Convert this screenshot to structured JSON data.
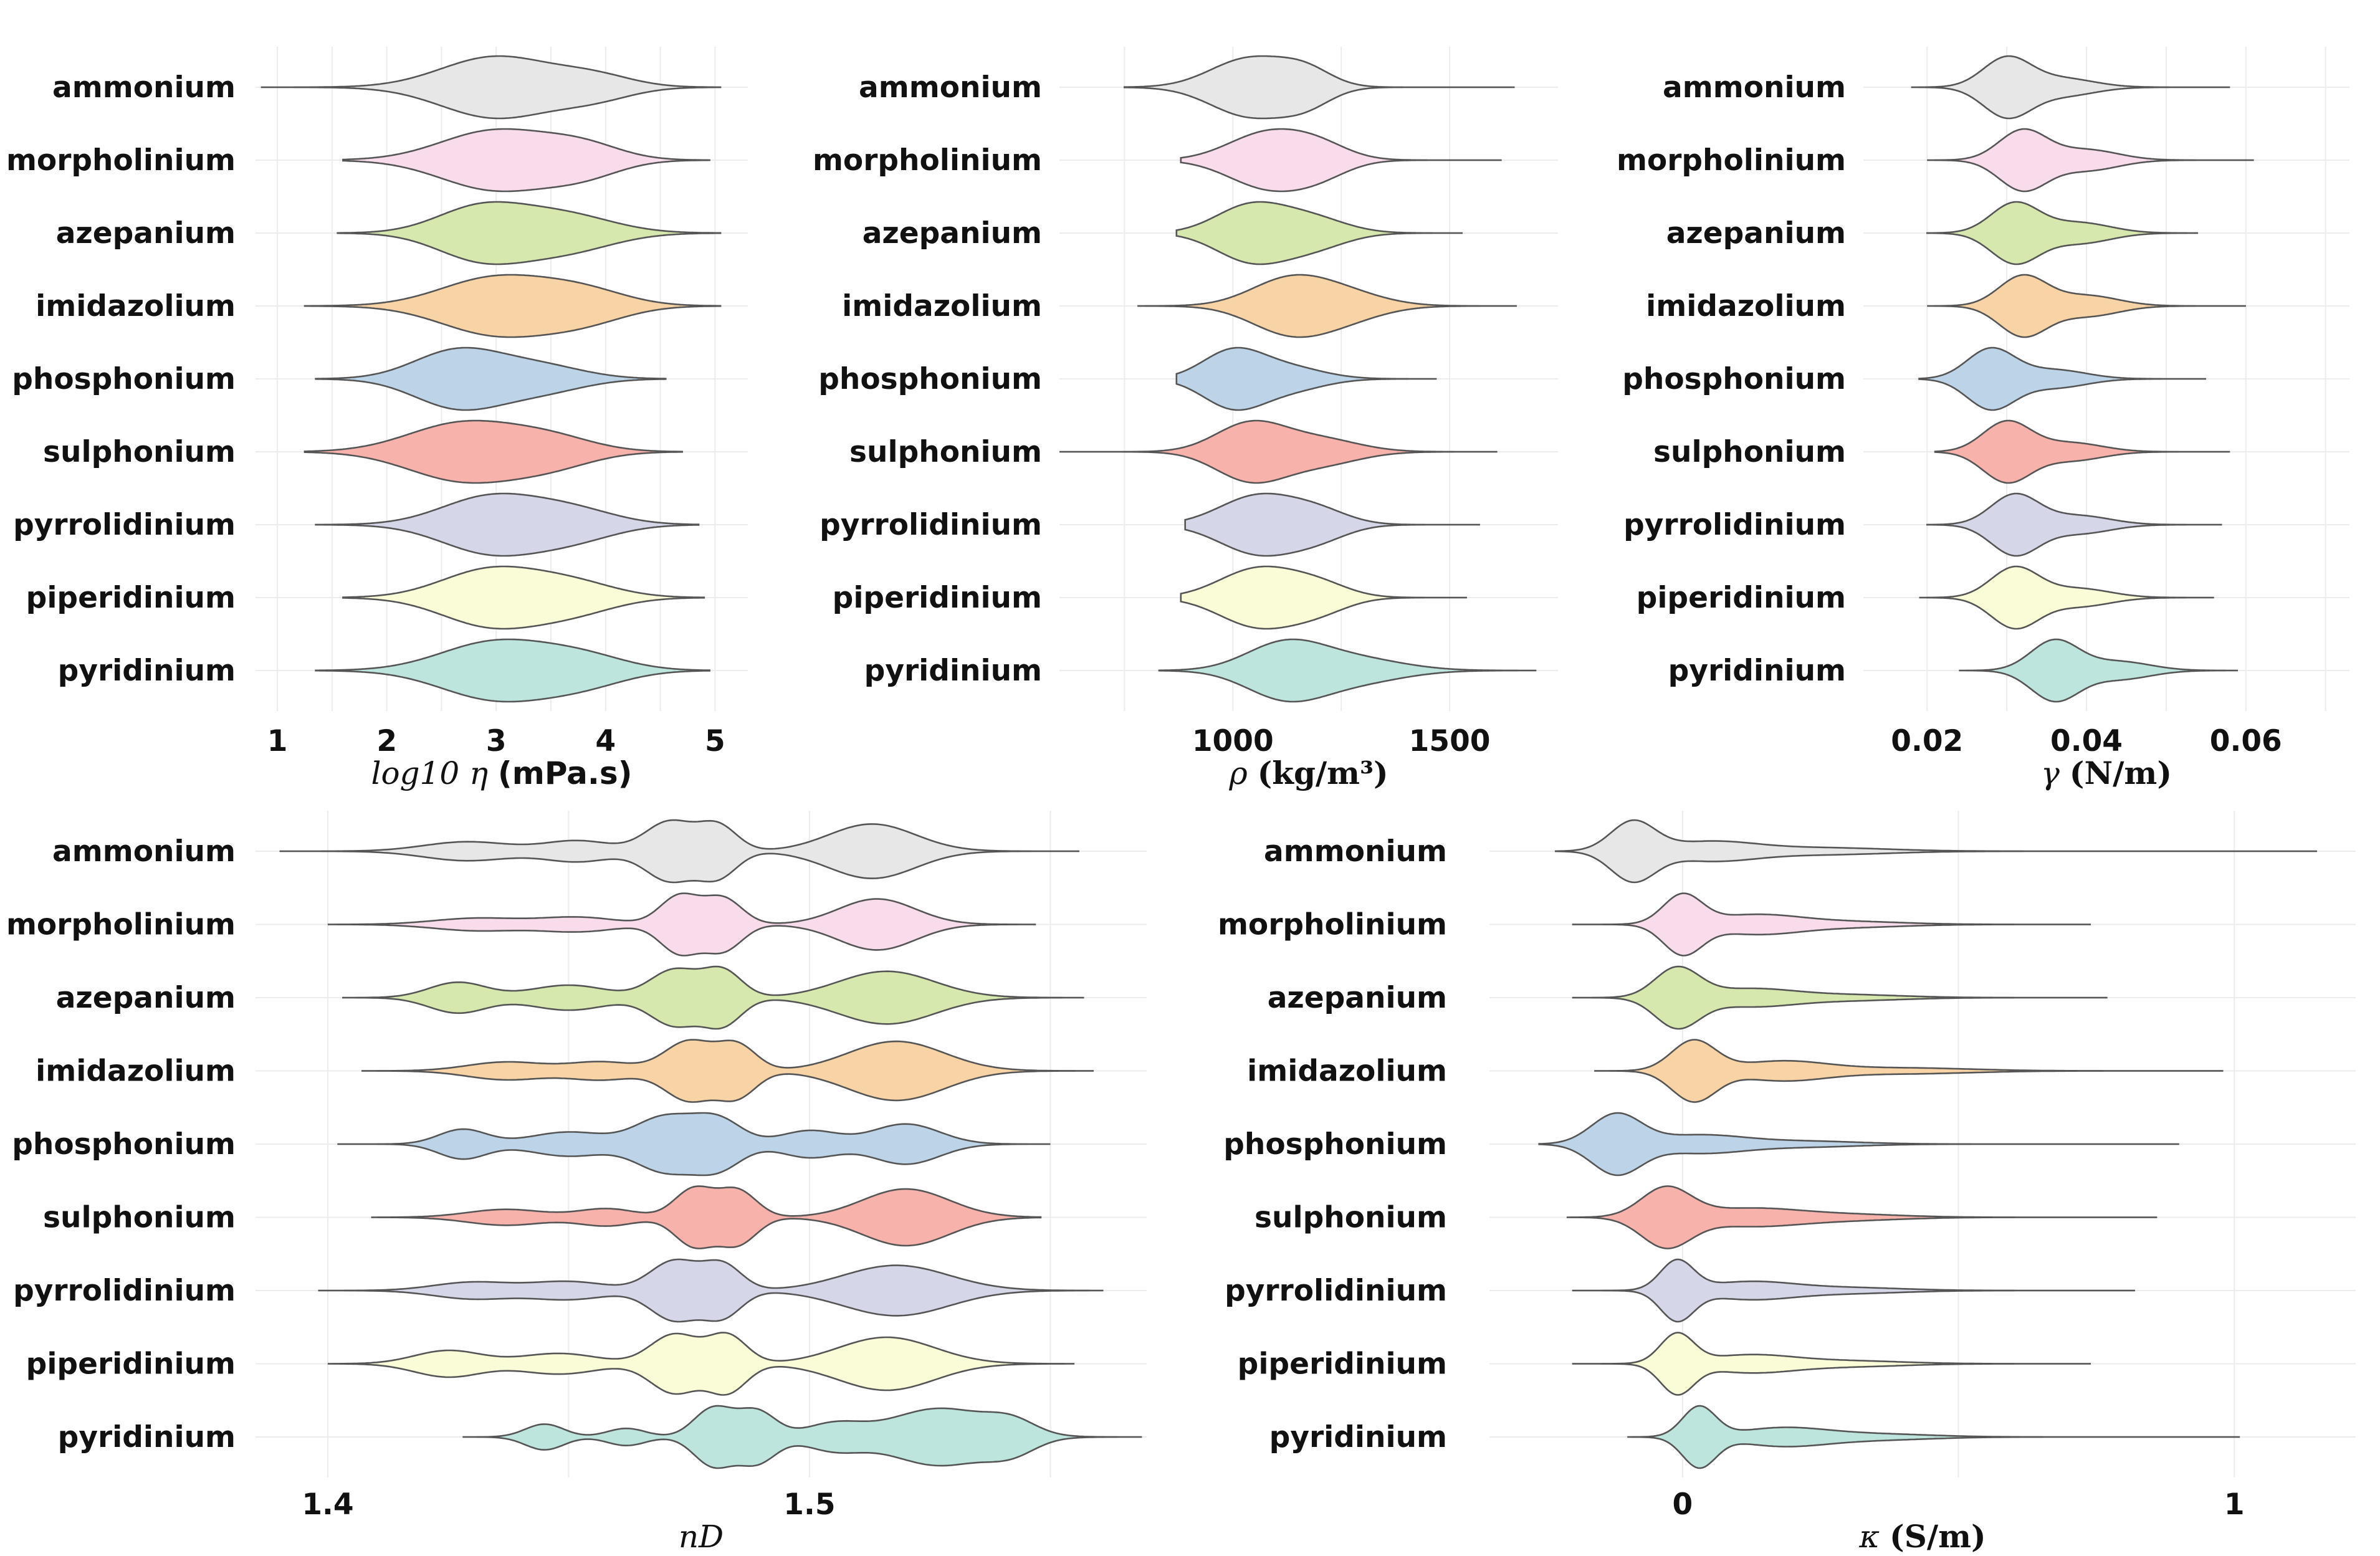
{
  "chart_data": [
    {
      "type": "violin",
      "xlabel": "log10 η (mPa.s)",
      "xticks": [
        1,
        2,
        3,
        4,
        5
      ],
      "xlim": [
        0.8,
        5.3
      ],
      "categories": [
        "ammonium",
        "morpholinium",
        "azepanium",
        "imidazolium",
        "phosphonium",
        "sulphonium",
        "pyrrolidinium",
        "piperidinium",
        "pyridinium"
      ],
      "series": [
        {
          "name": "ammonium",
          "min": 0.85,
          "max": 5.05,
          "modes": [
            [
              3.0,
              0.5,
              1.0
            ],
            [
              3.9,
              0.35,
              0.35
            ]
          ]
        },
        {
          "name": "morpholinium",
          "min": 1.6,
          "max": 4.95,
          "modes": [
            [
              3.0,
              0.5,
              1.0
            ],
            [
              3.8,
              0.35,
              0.45
            ]
          ]
        },
        {
          "name": "azepanium",
          "min": 1.55,
          "max": 5.05,
          "modes": [
            [
              2.85,
              0.4,
              1.0
            ],
            [
              3.6,
              0.45,
              0.75
            ]
          ]
        },
        {
          "name": "imidazolium",
          "min": 1.25,
          "max": 5.05,
          "modes": [
            [
              3.0,
              0.5,
              1.0
            ],
            [
              3.8,
              0.4,
              0.5
            ]
          ]
        },
        {
          "name": "phosphonium",
          "min": 1.35,
          "max": 4.55,
          "modes": [
            [
              2.65,
              0.4,
              1.0
            ],
            [
              3.4,
              0.4,
              0.45
            ]
          ]
        },
        {
          "name": "sulphonium",
          "min": 1.25,
          "max": 4.7,
          "modes": [
            [
              2.7,
              0.5,
              1.0
            ],
            [
              3.5,
              0.4,
              0.45
            ]
          ]
        },
        {
          "name": "pyrrolidinium",
          "min": 1.35,
          "max": 4.85,
          "modes": [
            [
              2.95,
              0.45,
              1.0
            ],
            [
              3.7,
              0.4,
              0.5
            ]
          ]
        },
        {
          "name": "piperidinium",
          "min": 1.6,
          "max": 4.9,
          "modes": [
            [
              2.95,
              0.45,
              1.0
            ],
            [
              3.7,
              0.4,
              0.5
            ]
          ]
        },
        {
          "name": "pyridinium",
          "min": 1.35,
          "max": 4.95,
          "modes": [
            [
              3.0,
              0.5,
              1.0
            ],
            [
              3.8,
              0.4,
              0.45
            ]
          ]
        }
      ]
    },
    {
      "type": "violin",
      "xlabel": "ρ (kg/m³)",
      "xticks": [
        1000,
        1500
      ],
      "xlim": [
        600,
        1750
      ],
      "categories": [
        "ammonium",
        "morpholinium",
        "azepanium",
        "imidazolium",
        "phosphonium",
        "sulphonium",
        "pyrrolidinium",
        "piperidinium",
        "pyridinium"
      ],
      "series": [
        {
          "name": "ammonium",
          "min": 750,
          "max": 1650,
          "modes": [
            [
              1040,
              90,
              1.0
            ],
            [
              1170,
              60,
              0.5
            ]
          ]
        },
        {
          "name": "morpholinium",
          "min": 880,
          "max": 1620,
          "modes": [
            [
              1080,
              90,
              1.0
            ],
            [
              1200,
              70,
              0.45
            ]
          ]
        },
        {
          "name": "azepanium",
          "min": 870,
          "max": 1530,
          "modes": [
            [
              1040,
              80,
              1.0
            ],
            [
              1180,
              80,
              0.55
            ]
          ]
        },
        {
          "name": "imidazolium",
          "min": 780,
          "max": 1655,
          "modes": [
            [
              1130,
              90,
              1.0
            ],
            [
              1260,
              90,
              0.45
            ]
          ]
        },
        {
          "name": "phosphonium",
          "min": 870,
          "max": 1470,
          "modes": [
            [
              1000,
              70,
              1.0
            ],
            [
              1130,
              80,
              0.4
            ]
          ]
        },
        {
          "name": "sulphonium",
          "min": 600,
          "max": 1610,
          "modes": [
            [
              1040,
              80,
              1.0
            ],
            [
              1200,
              90,
              0.45
            ]
          ]
        },
        {
          "name": "pyrrolidinium",
          "min": 890,
          "max": 1570,
          "modes": [
            [
              1060,
              90,
              1.0
            ],
            [
              1200,
              70,
              0.4
            ]
          ]
        },
        {
          "name": "piperidinium",
          "min": 880,
          "max": 1540,
          "modes": [
            [
              1060,
              90,
              1.0
            ],
            [
              1200,
              70,
              0.4
            ]
          ]
        },
        {
          "name": "pyridinium",
          "min": 830,
          "max": 1700,
          "modes": [
            [
              1120,
              90,
              1.0
            ],
            [
              1280,
              110,
              0.45
            ]
          ]
        }
      ]
    },
    {
      "type": "violin",
      "xlabel": "γ (N/m)",
      "xticks": [
        0.02,
        0.04,
        0.06
      ],
      "xticklabels": [
        "0.02",
        "0.04",
        "0.06"
      ],
      "xlim": [
        0.012,
        0.073
      ],
      "categories": [
        "ammonium",
        "morpholinium",
        "azepanium",
        "imidazolium",
        "phosphonium",
        "sulphonium",
        "pyrrolidinium",
        "piperidinium",
        "pyridinium"
      ],
      "series": [
        {
          "name": "ammonium",
          "min": 0.018,
          "max": 0.058,
          "modes": [
            [
              0.03,
              0.003,
              1.0
            ],
            [
              0.037,
              0.004,
              0.3
            ]
          ]
        },
        {
          "name": "morpholinium",
          "min": 0.02,
          "max": 0.061,
          "modes": [
            [
              0.032,
              0.003,
              1.0
            ],
            [
              0.04,
              0.004,
              0.35
            ]
          ]
        },
        {
          "name": "azepanium",
          "min": 0.02,
          "max": 0.054,
          "modes": [
            [
              0.031,
              0.003,
              1.0
            ],
            [
              0.039,
              0.004,
              0.35
            ]
          ]
        },
        {
          "name": "imidazolium",
          "min": 0.02,
          "max": 0.06,
          "modes": [
            [
              0.032,
              0.003,
              1.0
            ],
            [
              0.04,
              0.004,
              0.35
            ]
          ]
        },
        {
          "name": "phosphonium",
          "min": 0.019,
          "max": 0.055,
          "modes": [
            [
              0.028,
              0.003,
              1.0
            ],
            [
              0.036,
              0.004,
              0.3
            ]
          ]
        },
        {
          "name": "sulphonium",
          "min": 0.021,
          "max": 0.058,
          "modes": [
            [
              0.03,
              0.003,
              1.0
            ],
            [
              0.038,
              0.004,
              0.3
            ]
          ]
        },
        {
          "name": "pyrrolidinium",
          "min": 0.02,
          "max": 0.057,
          "modes": [
            [
              0.031,
              0.003,
              1.0
            ],
            [
              0.039,
              0.004,
              0.3
            ]
          ]
        },
        {
          "name": "piperidinium",
          "min": 0.019,
          "max": 0.056,
          "modes": [
            [
              0.031,
              0.003,
              1.0
            ],
            [
              0.039,
              0.004,
              0.3
            ]
          ]
        },
        {
          "name": "pyridinium",
          "min": 0.024,
          "max": 0.059,
          "modes": [
            [
              0.036,
              0.003,
              1.0
            ],
            [
              0.044,
              0.004,
              0.3
            ]
          ]
        }
      ]
    },
    {
      "type": "violin",
      "xlabel": "nD",
      "xticks": [
        1.4,
        1.5
      ],
      "xticklabels": [
        "1.4",
        "1.5"
      ],
      "xlim": [
        1.385,
        1.57
      ],
      "categories": [
        "ammonium",
        "morpholinium",
        "azepanium",
        "imidazolium",
        "phosphonium",
        "sulphonium",
        "pyrrolidinium",
        "piperidinium",
        "pyridinium"
      ],
      "series": [
        {
          "name": "ammonium",
          "min": 1.39,
          "max": 1.556,
          "modes": [
            [
              1.429,
              0.009,
              0.32
            ],
            [
              1.452,
              0.007,
              0.35
            ],
            [
              1.471,
              0.005,
              1.0
            ],
            [
              1.481,
              0.004,
              0.85
            ],
            [
              1.513,
              0.009,
              0.92
            ]
          ]
        },
        {
          "name": "morpholinium",
          "min": 1.4,
          "max": 1.547,
          "modes": [
            [
              1.431,
              0.009,
              0.22
            ],
            [
              1.452,
              0.008,
              0.25
            ],
            [
              1.473,
              0.004,
              1.0
            ],
            [
              1.482,
              0.004,
              0.92
            ],
            [
              1.514,
              0.008,
              0.9
            ]
          ]
        },
        {
          "name": "azepanium",
          "min": 1.403,
          "max": 1.557,
          "modes": [
            [
              1.427,
              0.006,
              0.55
            ],
            [
              1.45,
              0.008,
              0.45
            ],
            [
              1.472,
              0.005,
              1.0
            ],
            [
              1.482,
              0.004,
              0.95
            ],
            [
              1.516,
              0.01,
              0.95
            ]
          ]
        },
        {
          "name": "imidazolium",
          "min": 1.407,
          "max": 1.559,
          "modes": [
            [
              1.437,
              0.008,
              0.3
            ],
            [
              1.457,
              0.007,
              0.3
            ],
            [
              1.475,
              0.005,
              1.0
            ],
            [
              1.485,
              0.004,
              0.85
            ],
            [
              1.518,
              0.01,
              1.0
            ]
          ]
        },
        {
          "name": "phosphonium",
          "min": 1.402,
          "max": 1.55,
          "modes": [
            [
              1.428,
              0.005,
              0.55
            ],
            [
              1.45,
              0.008,
              0.45
            ],
            [
              1.47,
              0.006,
              1.0
            ],
            [
              1.481,
              0.005,
              0.9
            ],
            [
              1.52,
              0.007,
              0.75
            ],
            [
              1.5,
              0.006,
              0.5
            ]
          ]
        },
        {
          "name": "sulphonium",
          "min": 1.409,
          "max": 1.548,
          "modes": [
            [
              1.437,
              0.008,
              0.28
            ],
            [
              1.458,
              0.006,
              0.3
            ],
            [
              1.476,
              0.004,
              1.0
            ],
            [
              1.485,
              0.004,
              0.95
            ],
            [
              1.52,
              0.009,
              1.0
            ]
          ]
        },
        {
          "name": "pyrrolidinium",
          "min": 1.398,
          "max": 1.561,
          "modes": [
            [
              1.43,
              0.008,
              0.28
            ],
            [
              1.45,
              0.008,
              0.3
            ],
            [
              1.472,
              0.005,
              1.0
            ],
            [
              1.482,
              0.004,
              0.85
            ],
            [
              1.518,
              0.011,
              0.85
            ]
          ]
        },
        {
          "name": "piperidinium",
          "min": 1.4,
          "max": 1.555,
          "modes": [
            [
              1.425,
              0.007,
              0.45
            ],
            [
              1.448,
              0.008,
              0.35
            ],
            [
              1.472,
              0.005,
              1.0
            ],
            [
              1.483,
              0.004,
              0.95
            ],
            [
              1.516,
              0.01,
              0.9
            ]
          ]
        },
        {
          "name": "pyridinium",
          "min": 1.428,
          "max": 1.569,
          "modes": [
            [
              1.445,
              0.004,
              0.45
            ],
            [
              1.462,
              0.004,
              0.3
            ],
            [
              1.48,
              0.004,
              1.0
            ],
            [
              1.489,
              0.004,
              0.9
            ],
            [
              1.505,
              0.006,
              0.45
            ],
            [
              1.527,
              0.01,
              1.0
            ],
            [
              1.542,
              0.005,
              0.45
            ]
          ]
        }
      ]
    },
    {
      "type": "violin",
      "xlabel": "κ (S/m)",
      "xticks": [
        0,
        1
      ],
      "xlim": [
        -0.35,
        1.22
      ],
      "categories": [
        "ammonium",
        "morpholinium",
        "azepanium",
        "imidazolium",
        "phosphonium",
        "sulphonium",
        "pyrrolidinium",
        "piperidinium",
        "pyridinium"
      ],
      "series": [
        {
          "name": "ammonium",
          "min": -0.23,
          "max": 1.15,
          "modes": [
            [
              -0.09,
              0.04,
              1.0
            ],
            [
              0.05,
              0.08,
              0.32
            ],
            [
              0.25,
              0.12,
              0.12
            ]
          ]
        },
        {
          "name": "morpholinium",
          "min": -0.2,
          "max": 0.74,
          "modes": [
            [
              0.0,
              0.035,
              1.0
            ],
            [
              0.13,
              0.08,
              0.33
            ],
            [
              0.3,
              0.1,
              0.1
            ]
          ]
        },
        {
          "name": "azepanium",
          "min": -0.2,
          "max": 0.77,
          "modes": [
            [
              -0.01,
              0.04,
              1.0
            ],
            [
              0.12,
              0.08,
              0.3
            ],
            [
              0.3,
              0.1,
              0.1
            ]
          ]
        },
        {
          "name": "imidazolium",
          "min": -0.16,
          "max": 0.98,
          "modes": [
            [
              0.02,
              0.04,
              1.0
            ],
            [
              0.18,
              0.08,
              0.32
            ],
            [
              0.4,
              0.12,
              0.1
            ]
          ]
        },
        {
          "name": "phosphonium",
          "min": -0.26,
          "max": 0.9,
          "modes": [
            [
              -0.12,
              0.045,
              1.0
            ],
            [
              0.03,
              0.08,
              0.3
            ],
            [
              0.22,
              0.1,
              0.1
            ]
          ]
        },
        {
          "name": "sulphonium",
          "min": -0.21,
          "max": 0.86,
          "modes": [
            [
              -0.03,
              0.045,
              1.0
            ],
            [
              0.12,
              0.09,
              0.3
            ],
            [
              0.3,
              0.1,
              0.1
            ]
          ]
        },
        {
          "name": "pyrrolidinium",
          "min": -0.2,
          "max": 0.82,
          "modes": [
            [
              -0.01,
              0.03,
              1.0
            ],
            [
              0.12,
              0.08,
              0.3
            ],
            [
              0.3,
              0.1,
              0.1
            ]
          ]
        },
        {
          "name": "piperidinium",
          "min": -0.2,
          "max": 0.74,
          "modes": [
            [
              -0.01,
              0.03,
              1.0
            ],
            [
              0.12,
              0.08,
              0.3
            ],
            [
              0.3,
              0.1,
              0.1
            ]
          ]
        },
        {
          "name": "pyridinium",
          "min": -0.1,
          "max": 1.01,
          "modes": [
            [
              0.03,
              0.03,
              1.0
            ],
            [
              0.18,
              0.08,
              0.3
            ],
            [
              0.35,
              0.1,
              0.1
            ]
          ]
        }
      ]
    }
  ],
  "colors": [
    "#e7e7e7",
    "#f8dcec",
    "#d6e8ae",
    "#f8d3a5",
    "#bdd4e8",
    "#f7b2ac",
    "#d6d6e9",
    "#fafbd7",
    "#bde5dd"
  ]
}
